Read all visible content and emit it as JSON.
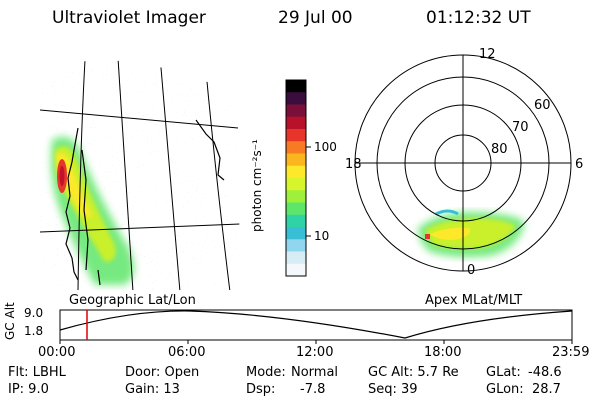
{
  "header": {
    "instrument": "Ultraviolet Imager",
    "date": "29 Jul 00",
    "time": "01:12:32 UT"
  },
  "left_panel": {
    "label": "Geographic Lat/Lon"
  },
  "colorbar": {
    "label": "photon cm⁻²s⁻¹",
    "ticks": [
      "100",
      "10"
    ],
    "colors": [
      "#000000",
      "#3a0d3e",
      "#7a0f3a",
      "#b8122a",
      "#e8352a",
      "#f77b22",
      "#fbb51f",
      "#fde92a",
      "#d6f52a",
      "#9ef03a",
      "#5ee66a",
      "#2fd3a6",
      "#38bfd6",
      "#8fd6ee",
      "#d7edf5",
      "#f4f8fa"
    ]
  },
  "polar": {
    "label": "Apex MLat/MLT",
    "mlt_labels": {
      "top": "12",
      "left": "18",
      "right": "6",
      "bottom": "0"
    },
    "lat_labels": [
      "60",
      "70",
      "80"
    ]
  },
  "timeline": {
    "y_axis_label": "GC Alt",
    "y_ticks": [
      "9.0",
      "1.8"
    ],
    "x_ticks": [
      "00:00",
      "06:00",
      "12:00",
      "18:00",
      "23:59"
    ],
    "marker_color": "#e00000"
  },
  "info": {
    "filter": "Flt: LBHL",
    "ip": "IP:  9.0",
    "door": "Door: Open",
    "gain": "Gain: 13",
    "mode_label": "Mode:",
    "mode_value": "Normal",
    "dsp_label": "Dsp:",
    "dsp_value": "-7.8",
    "gc_alt": "GC Alt: 5.7 Re",
    "seq": "Seq: 39",
    "glat_label": "GLat:",
    "glat_value": "-48.6",
    "glon_label": "GLon:",
    "glon_value": "28.7"
  }
}
